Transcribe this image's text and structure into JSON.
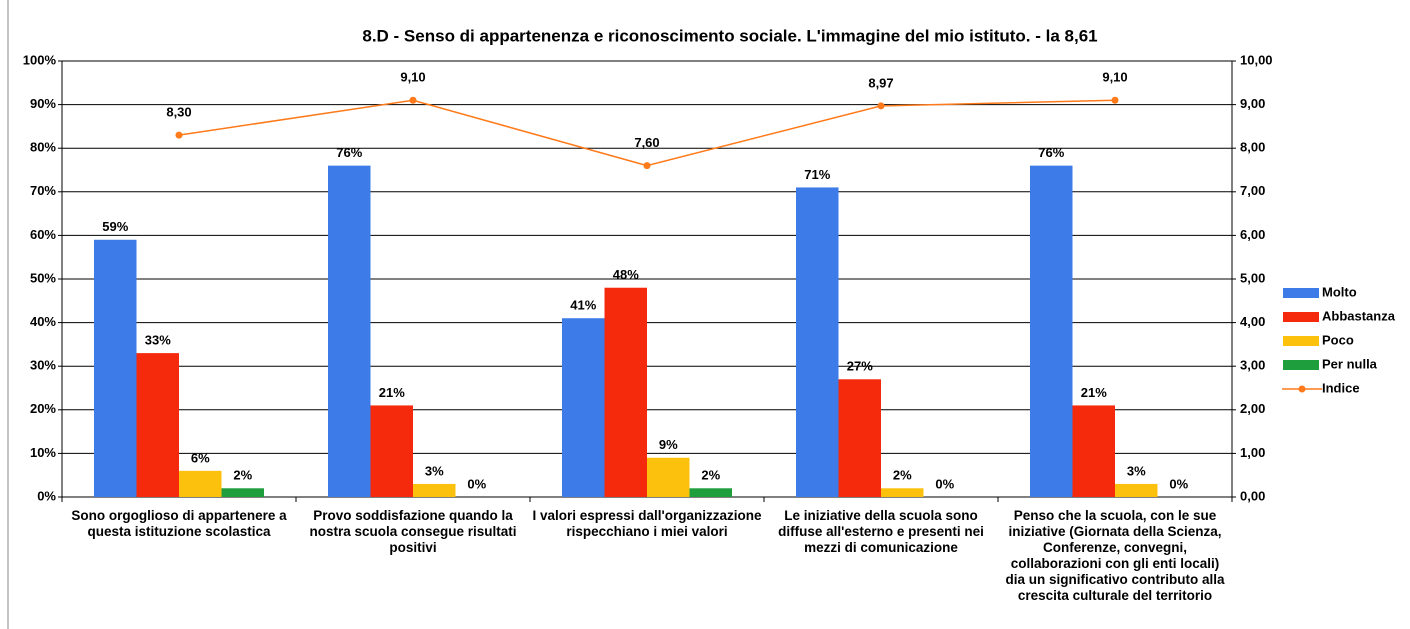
{
  "chart_data": {
    "type": "bar",
    "title": "8.D - Senso di appartenenza e riconoscimento sociale. L'immagine del mio istituto. - la 8,61",
    "categories": [
      "Sono orgoglioso di appartenere a questa istituzione scolastica",
      "Provo soddisfazione quando la nostra scuola consegue risultati positivi",
      "I valori espressi dall'organizzazione rispecchiano i miei valori",
      "Le iniziative della scuola sono diffuse all'esterno e presenti nei mezzi di comunicazione",
      "Penso che la scuola, con le sue iniziative (Giornata della Scienza, Conferenze, convegni, collaborazioni con gli enti locali) dia un significativo contributo alla crescita culturale del territorio"
    ],
    "series": [
      {
        "name": "Molto",
        "color": "#3c7be8",
        "values": [
          59,
          76,
          41,
          71,
          76
        ],
        "value_labels": [
          "59%",
          "76%",
          "41%",
          "71%",
          "76%"
        ]
      },
      {
        "name": "Abbastanza",
        "color": "#f52a0c",
        "values": [
          33,
          21,
          48,
          27,
          21
        ],
        "value_labels": [
          "33%",
          "21%",
          "48%",
          "27%",
          "21%"
        ]
      },
      {
        "name": "Poco",
        "color": "#fcc10c",
        "values": [
          6,
          3,
          9,
          2,
          3
        ],
        "value_labels": [
          "6%",
          "3%",
          "9%",
          "2%",
          "3%"
        ]
      },
      {
        "name": "Per nulla",
        "color": "#1f9e3e",
        "values": [
          2,
          0,
          2,
          0,
          0
        ],
        "value_labels": [
          "2%",
          "0%",
          "2%",
          "0%",
          "0%"
        ]
      },
      {
        "name": "Indice",
        "color": "#ff7a1a",
        "type": "line",
        "axis": "y2",
        "values": [
          8.3,
          9.1,
          7.6,
          8.97,
          9.1
        ],
        "value_labels": [
          "8,30",
          "9,10",
          "7,60",
          "8,97",
          "9,10"
        ]
      }
    ],
    "ylim": [
      0,
      100
    ],
    "yticks": [
      {
        "value": 0,
        "label": "0%"
      },
      {
        "value": 10,
        "label": "10%"
      },
      {
        "value": 20,
        "label": "20%"
      },
      {
        "value": 30,
        "label": "30%"
      },
      {
        "value": 40,
        "label": "40%"
      },
      {
        "value": 50,
        "label": "50%"
      },
      {
        "value": 60,
        "label": "60%"
      },
      {
        "value": 70,
        "label": "70%"
      },
      {
        "value": 80,
        "label": "80%"
      },
      {
        "value": 90,
        "label": "90%"
      },
      {
        "value": 100,
        "label": "100%"
      }
    ],
    "y2lim": [
      0,
      10
    ],
    "y2ticks": [
      {
        "value": 0,
        "label": "0,00"
      },
      {
        "value": 1,
        "label": "1,00"
      },
      {
        "value": 2,
        "label": "2,00"
      },
      {
        "value": 3,
        "label": "3,00"
      },
      {
        "value": 4,
        "label": "4,00"
      },
      {
        "value": 5,
        "label": "5,00"
      },
      {
        "value": 6,
        "label": "6,00"
      },
      {
        "value": 7,
        "label": "7,00"
      },
      {
        "value": 8,
        "label": "8,00"
      },
      {
        "value": 9,
        "label": "9,00"
      },
      {
        "value": 10,
        "label": "10,00"
      }
    ],
    "grid": true,
    "legend": "right"
  }
}
